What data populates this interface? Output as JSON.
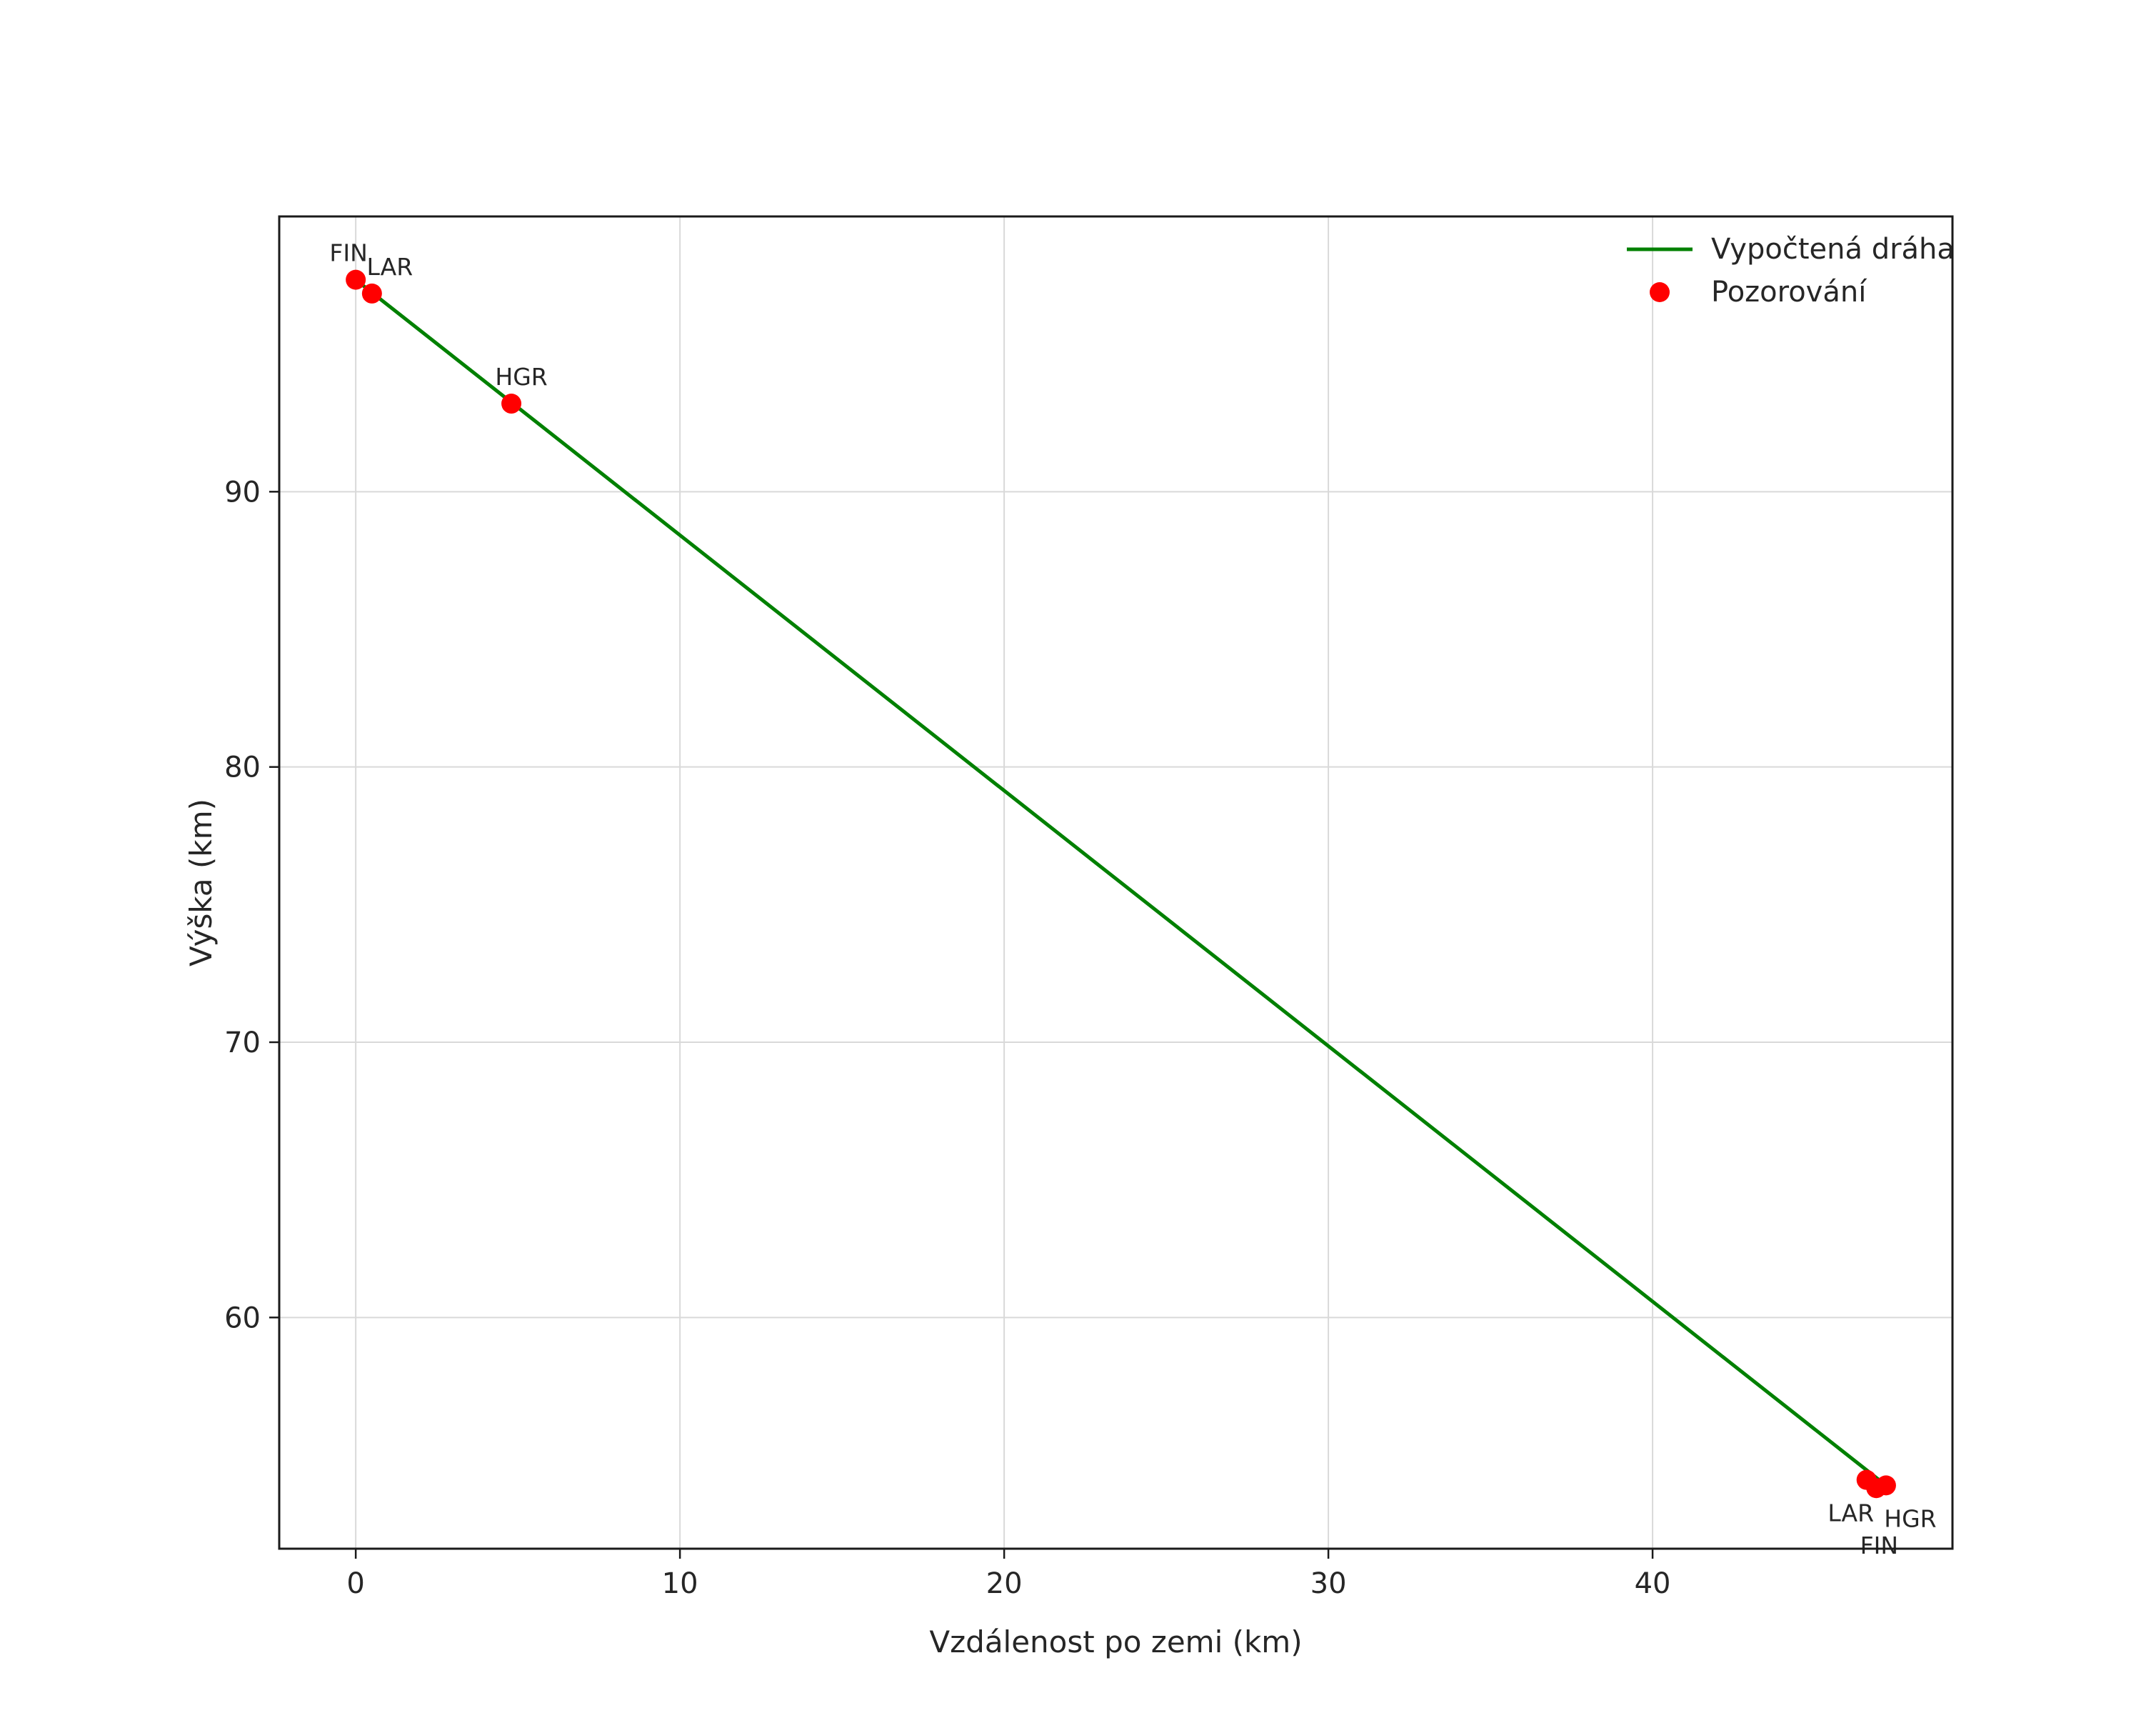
{
  "chart_data": {
    "type": "line",
    "title": "",
    "xlabel": "Vzdálenost po zemi (km)",
    "ylabel": "Výška (km)",
    "xlim": [
      -2.36,
      49.25
    ],
    "ylim": [
      51.6,
      100.0
    ],
    "x_ticks": [
      0,
      10,
      20,
      30,
      40
    ],
    "y_ticks": [
      60,
      70,
      80,
      90
    ],
    "grid": true,
    "colors": {
      "trajectory_line": "#008000",
      "observation_marker": "#ff0000",
      "grid": "#d9d9d9",
      "spine": "#1a1a1a",
      "text": "#262626"
    },
    "legend": {
      "position": "upper right",
      "entries": [
        {
          "label": "Vypočtená dráha",
          "type": "line",
          "color": "#008000"
        },
        {
          "label": "Pozorování",
          "type": "marker",
          "color": "#ff0000"
        }
      ]
    },
    "series": [
      {
        "name": "Vypočtená dráha",
        "type": "line",
        "color": "#008000",
        "points": [
          [
            0.0,
            97.7
          ],
          [
            47.2,
            53.9
          ]
        ]
      },
      {
        "name": "Pozorování",
        "type": "scatter",
        "color": "#ff0000",
        "points": [
          {
            "station": "FIN",
            "x": 0.0,
            "y": 97.7,
            "label_pos": "above",
            "label_dx": -10
          },
          {
            "station": "LAR",
            "x": 0.5,
            "y": 97.2,
            "label_pos": "above",
            "label_dx": 25
          },
          {
            "station": "HGR",
            "x": 4.8,
            "y": 93.2,
            "label_pos": "above",
            "label_dx": 14
          },
          {
            "station": "LAR",
            "x": 46.6,
            "y": 54.1,
            "label_pos": "below",
            "label_dx": -22
          },
          {
            "station": "HGR",
            "x": 47.2,
            "y": 53.9,
            "label_pos": "below",
            "label_dx": 34
          },
          {
            "station": "FIN",
            "x": 46.9,
            "y": 53.8,
            "label_pos": "below2",
            "label_dx": 4
          }
        ]
      }
    ]
  }
}
